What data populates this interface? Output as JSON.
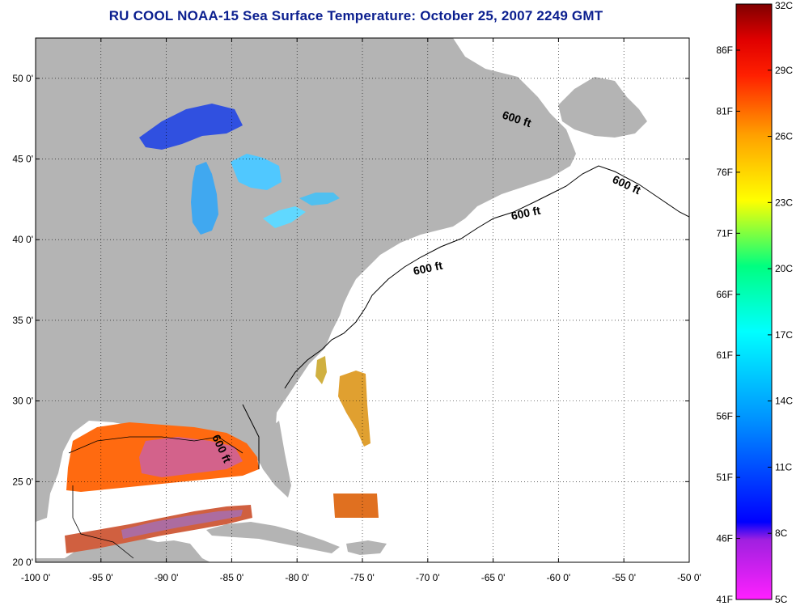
{
  "title": "RU COOL  NOAA-15  Sea Surface Temperature:  October 25, 2007 2249 GMT",
  "map": {
    "lon_range": [
      -100,
      -50
    ],
    "lat_range": [
      20,
      52.5
    ],
    "x_ticks": [
      "-100 0'",
      "-95 0'",
      "-90 0'",
      "-85 0'",
      "-80 0'",
      "-75 0'",
      "-70 0'",
      "-65 0'",
      "-60 0'",
      "-55 0'",
      "-50 0'"
    ],
    "y_ticks": [
      "50 0'",
      "45 0'",
      "40 0'",
      "35 0'",
      "30 0'",
      "25 0'",
      "20 0'"
    ],
    "grid": "dotted",
    "land_color": "#b4b4b4",
    "contour_labels": [
      "600 ft",
      "600 ft",
      "600 ft",
      "600 ft",
      "600 ft"
    ]
  },
  "colorbar": {
    "fahrenheit_labels": [
      "86F",
      "81F",
      "76F",
      "71F",
      "66F",
      "61F",
      "56F",
      "51F",
      "46F",
      "41F"
    ],
    "celsius_labels": [
      "32C",
      "29C",
      "26C",
      "23C",
      "20C",
      "17C",
      "14C",
      "11C",
      "8C",
      "5C"
    ],
    "range_c": [
      5,
      32
    ],
    "colors": [
      "#ff20ff",
      "#8020d0",
      "#0000ff",
      "#00a0ff",
      "#00ffff",
      "#00ff80",
      "#ffff00",
      "#ffa000",
      "#ff4000",
      "#ff0000",
      "#800000"
    ]
  }
}
